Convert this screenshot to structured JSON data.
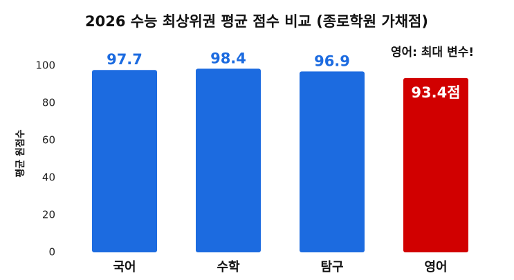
{
  "chart_data": {
    "type": "bar",
    "title": "2026 수능 최상위권 평균 점수 비교 (종로학원 가채점)",
    "annotation": "영어: 최대 변수!",
    "y_label": "평균 원점수",
    "categories": [
      "국어",
      "수학",
      "탐구",
      "영어"
    ],
    "values": [
      97.7,
      98.4,
      96.9,
      93.4
    ],
    "value_labels": [
      "97.7",
      "98.4",
      "96.9",
      "93.4점"
    ],
    "colors": [
      "#1c6be0",
      "#1c6be0",
      "#1c6be0",
      "#d10000"
    ],
    "ylim": [
      0,
      100
    ],
    "yticks": [
      0,
      20,
      40,
      60,
      80,
      100
    ],
    "grid": false
  }
}
